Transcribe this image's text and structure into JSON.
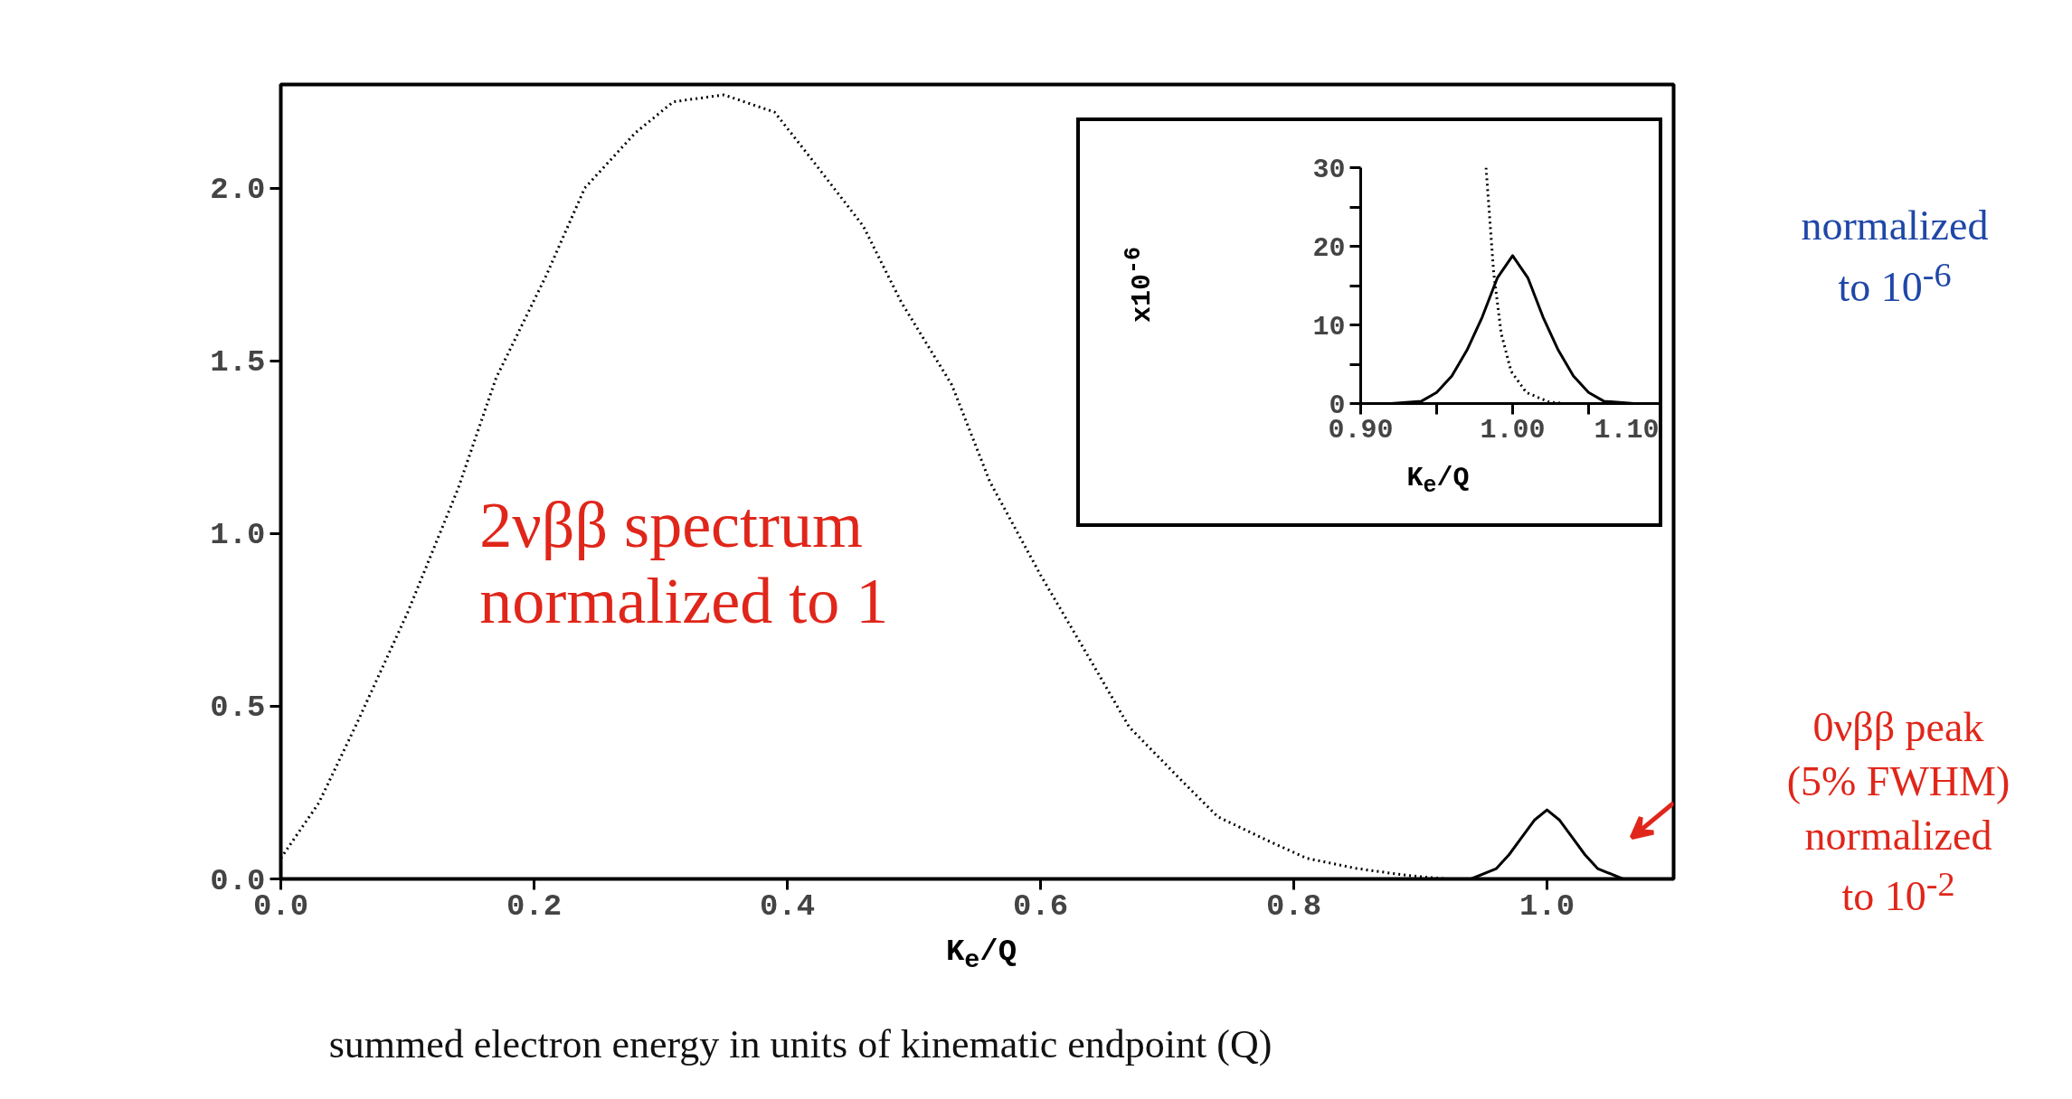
{
  "chart_data": [
    {
      "type": "line",
      "xlabel": "K$_{e}$/Q",
      "xlim": [
        0,
        1.1
      ],
      "ylim": [
        0,
        2.3
      ],
      "xticks": [
        {
          "value": 0,
          "label": "0.0"
        },
        0.2,
        0.4,
        0.6,
        0.8,
        {
          "value": 1,
          "label": "1.0"
        }
      ],
      "yticks": [
        {
          "value": 0,
          "label": "0.0"
        },
        0.5,
        {
          "value": 1,
          "label": "1.0"
        },
        1.5,
        {
          "value": 2,
          "label": "2.0"
        }
      ],
      "grid": false,
      "series": [
        {
          "color": "#000000",
          "line_style": "dotted",
          "x": [
            0,
            0.03,
            0.06,
            0.1,
            0.14,
            0.17,
            0.21,
            0.24,
            0.28,
            0.31,
            0.35,
            0.39,
            0.42,
            0.46,
            0.49,
            0.53,
            0.56,
            0.6,
            0.64,
            0.67,
            0.71,
            0.74,
            0.78,
            0.81,
            0.85,
            0.89,
            0.92,
            0.96,
            1.0
          ],
          "values": [
            0.06,
            0.22,
            0.45,
            0.77,
            1.13,
            1.45,
            1.75,
            2.0,
            2.16,
            2.25,
            2.27,
            2.22,
            2.08,
            1.89,
            1.67,
            1.43,
            1.15,
            0.88,
            0.63,
            0.44,
            0.29,
            0.18,
            0.11,
            0.06,
            0.03,
            0.01,
            0,
            0,
            0
          ]
        },
        {
          "color": "#000000",
          "line_style": "solid",
          "x": [
            0.9,
            0.94,
            0.96,
            0.97,
            0.98,
            0.99,
            1.0,
            1.01,
            1.02,
            1.03,
            1.04,
            1.06,
            1.1
          ],
          "values": [
            0,
            0,
            0.03,
            0.07,
            0.12,
            0.17,
            0.2,
            0.17,
            0.12,
            0.07,
            0.03,
            0,
            0
          ]
        }
      ],
      "annotations": [
        "2νββ  spectrum\nnormalized to 1",
        "0νββ peak\n(5% FWHM)\nnormalized\nto 10$^{-2}$",
        "normalized\nto 10$^{-6}$",
        "summed electron energy in units of kinematic endpoint (Q)"
      ]
    },
    {
      "type": "line",
      "xlabel": "K$_{e}$/Q",
      "ylabel": "x10$^{-6}$",
      "xlim": [
        0.9,
        1.1
      ],
      "ylim": [
        0,
        30
      ],
      "xticks": [
        {
          "value": 0.9,
          "label": "0.90"
        },
        {
          "value": 0.95,
          "label": null
        },
        {
          "value": 1.0,
          "label": "1.00"
        },
        {
          "value": 1.05,
          "label": null
        },
        {
          "value": 1.1,
          "label": "1.10"
        }
      ],
      "yticks": [
        0,
        {
          "value": 5,
          "label": null
        },
        10,
        {
          "value": 15,
          "label": null
        },
        20,
        {
          "value": 25,
          "label": null
        },
        30
      ],
      "grid": false,
      "series": [
        {
          "color": "#000000",
          "line_style": "dotted",
          "x": [
            0.9825,
            0.9875,
            0.9925,
            0.999,
            1.009,
            1.024,
            1.034
          ],
          "values": [
            30,
            16.7,
            8.9,
            4.1,
            1.4,
            0.2,
            0
          ]
        },
        {
          "color": "#000000",
          "line_style": "solid",
          "x": [
            0.9,
            0.92,
            0.94,
            0.95,
            0.96,
            0.97,
            0.98,
            0.99,
            1.0,
            1.01,
            1.02,
            1.03,
            1.04,
            1.05,
            1.06,
            1.08,
            1.1
          ],
          "values": [
            0,
            0,
            0.3,
            1.4,
            3.5,
            6.8,
            11,
            16,
            18.8,
            16,
            11,
            6.8,
            3.5,
            1.4,
            0.3,
            0,
            0
          ]
        }
      ]
    }
  ]
}
